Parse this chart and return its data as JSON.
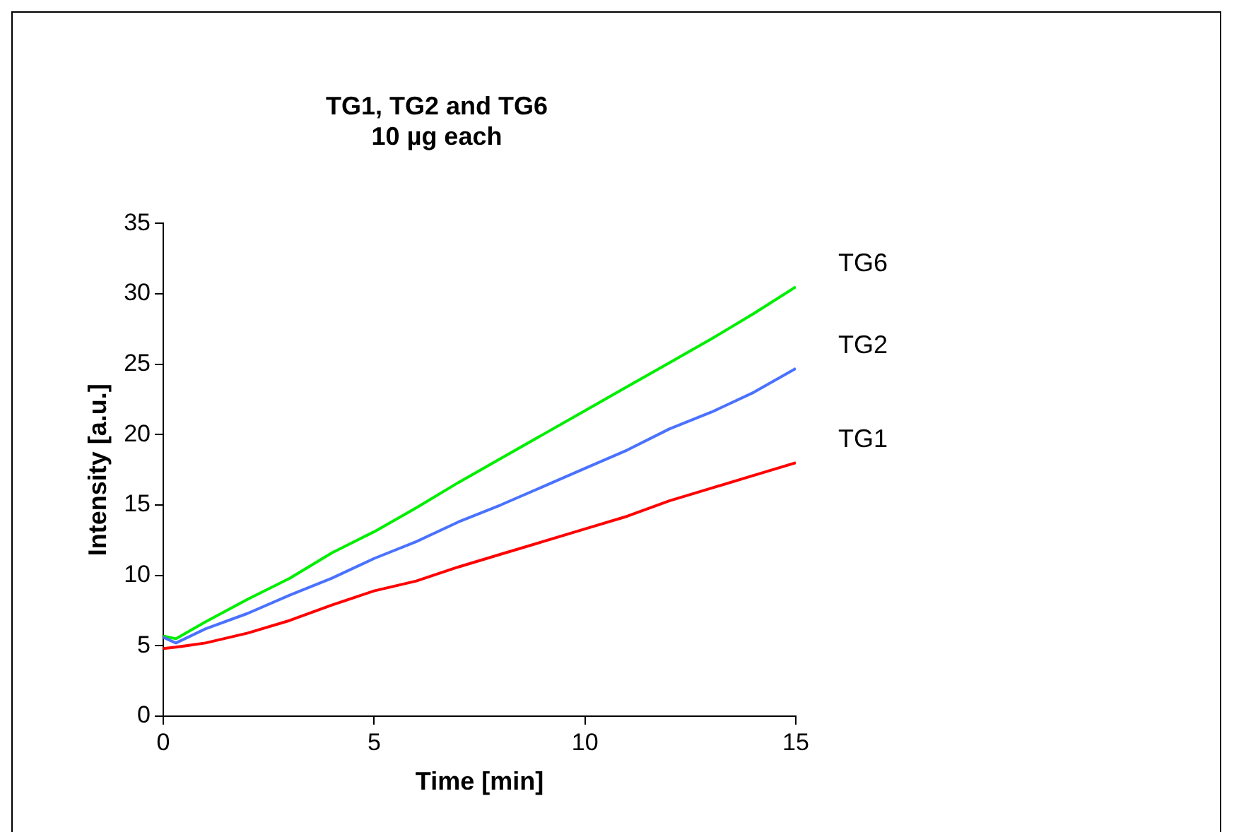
{
  "chart_data": {
    "type": "line",
    "title": "TG1, TG2 and TG6\n10 µg each",
    "xlabel": "Time [min]",
    "ylabel": "Intensity [a.u.]",
    "x": [
      0,
      0.3,
      1,
      2,
      3,
      4,
      5,
      6,
      7,
      8,
      9,
      10,
      11,
      12,
      13,
      14,
      15
    ],
    "series": [
      {
        "name": "TG1",
        "color": "#ff0000",
        "values": [
          4.8,
          4.9,
          5.2,
          5.9,
          6.8,
          7.9,
          8.9,
          9.6,
          10.6,
          11.5,
          12.4,
          13.3,
          14.2,
          15.3,
          16.2,
          17.1,
          18.0
        ]
      },
      {
        "name": "TG2",
        "color": "#4a72ff",
        "values": [
          5.6,
          5.2,
          6.2,
          7.3,
          8.6,
          9.8,
          11.2,
          12.4,
          13.8,
          15.0,
          16.3,
          17.6,
          18.9,
          20.4,
          21.6,
          23.0,
          24.7
        ]
      },
      {
        "name": "TG6",
        "color": "#00ee00",
        "values": [
          5.7,
          5.5,
          6.7,
          8.3,
          9.8,
          11.6,
          13.1,
          14.8,
          16.6,
          18.3,
          20.0,
          21.7,
          23.4,
          25.1,
          26.8,
          28.6,
          30.5
        ]
      }
    ],
    "xlim": [
      0,
      15
    ],
    "xticks": [
      0,
      5,
      10,
      15
    ],
    "ylim": [
      0,
      35
    ],
    "yticks": [
      0,
      5,
      10,
      15,
      20,
      25,
      30,
      35
    ],
    "grid": false,
    "legend": false,
    "marker": "none",
    "line_style": "solid"
  }
}
